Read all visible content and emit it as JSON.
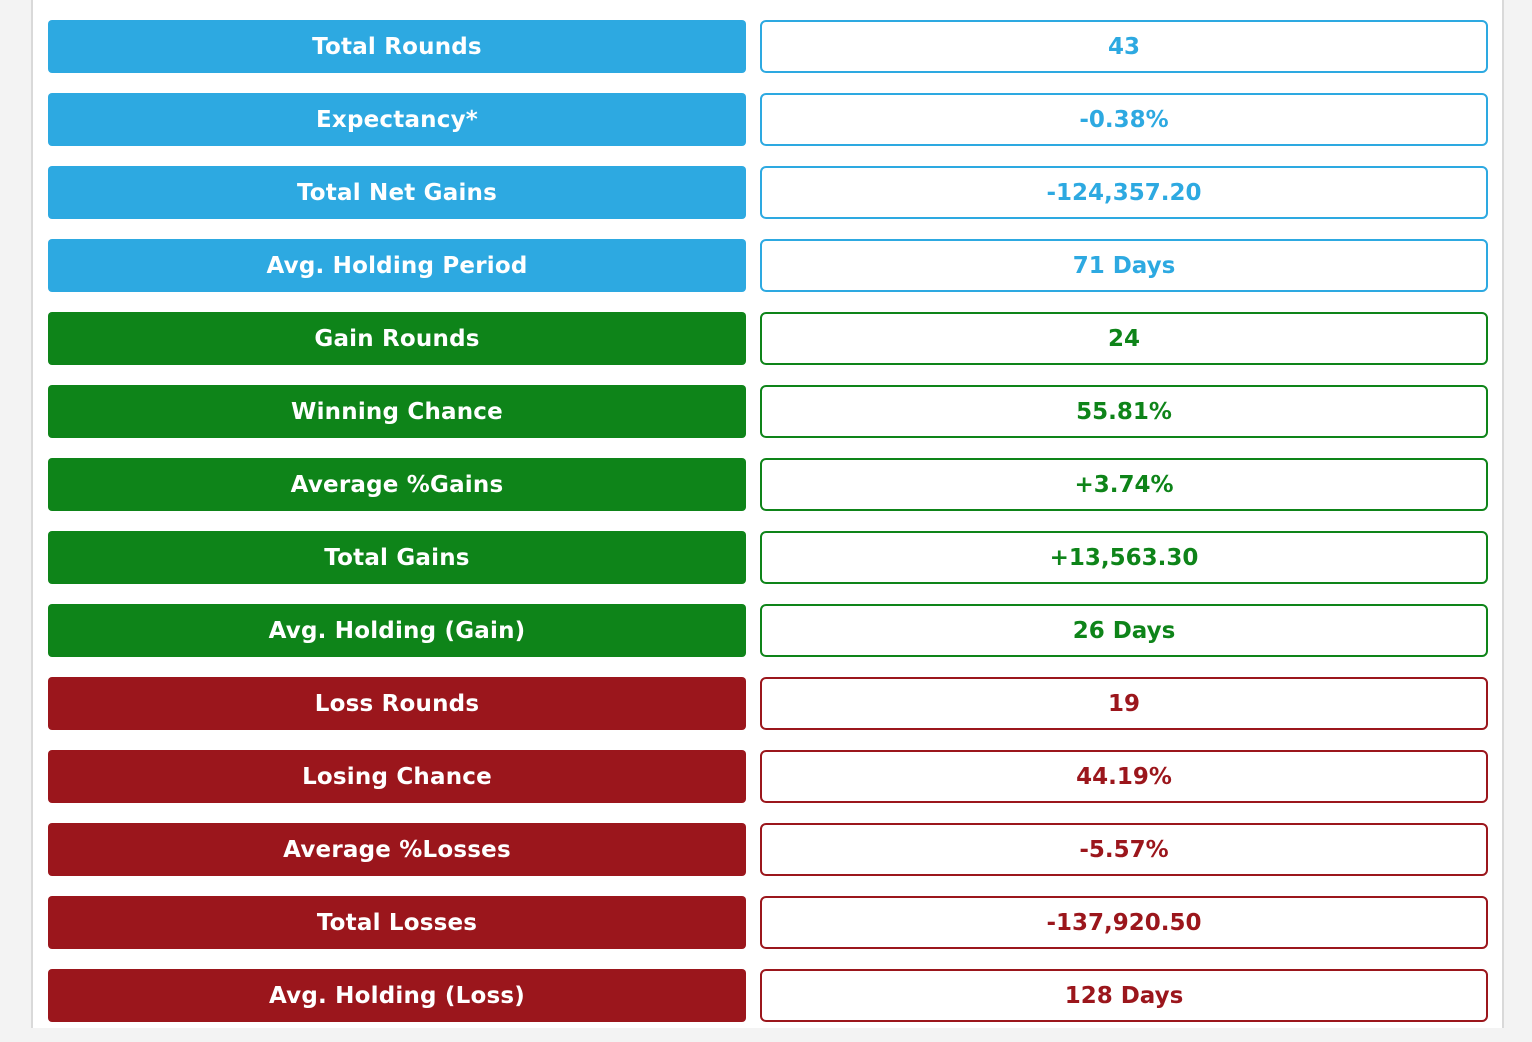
{
  "colors": {
    "blue": "#2da9e1",
    "green": "#0e8419",
    "red": "#9b161c"
  },
  "stats": [
    {
      "label": "Total Rounds",
      "value": "43",
      "group": "blue"
    },
    {
      "label": "Expectancy*",
      "value": "-0.38%",
      "group": "blue"
    },
    {
      "label": "Total Net Gains",
      "value": "-124,357.20",
      "group": "blue"
    },
    {
      "label": "Avg. Holding Period",
      "value": "71 Days",
      "group": "blue"
    },
    {
      "label": "Gain Rounds",
      "value": "24",
      "group": "green"
    },
    {
      "label": "Winning Chance",
      "value": "55.81%",
      "group": "green"
    },
    {
      "label": "Average %Gains",
      "value": "+3.74%",
      "group": "green"
    },
    {
      "label": "Total Gains",
      "value": "+13,563.30",
      "group": "green"
    },
    {
      "label": "Avg. Holding (Gain)",
      "value": "26 Days",
      "group": "green"
    },
    {
      "label": "Loss Rounds",
      "value": "19",
      "group": "red"
    },
    {
      "label": "Losing Chance",
      "value": "44.19%",
      "group": "red"
    },
    {
      "label": "Average %Losses",
      "value": "-5.57%",
      "group": "red"
    },
    {
      "label": "Total Losses",
      "value": "-137,920.50",
      "group": "red"
    },
    {
      "label": "Avg. Holding (Loss)",
      "value": "128 Days",
      "group": "red"
    }
  ]
}
